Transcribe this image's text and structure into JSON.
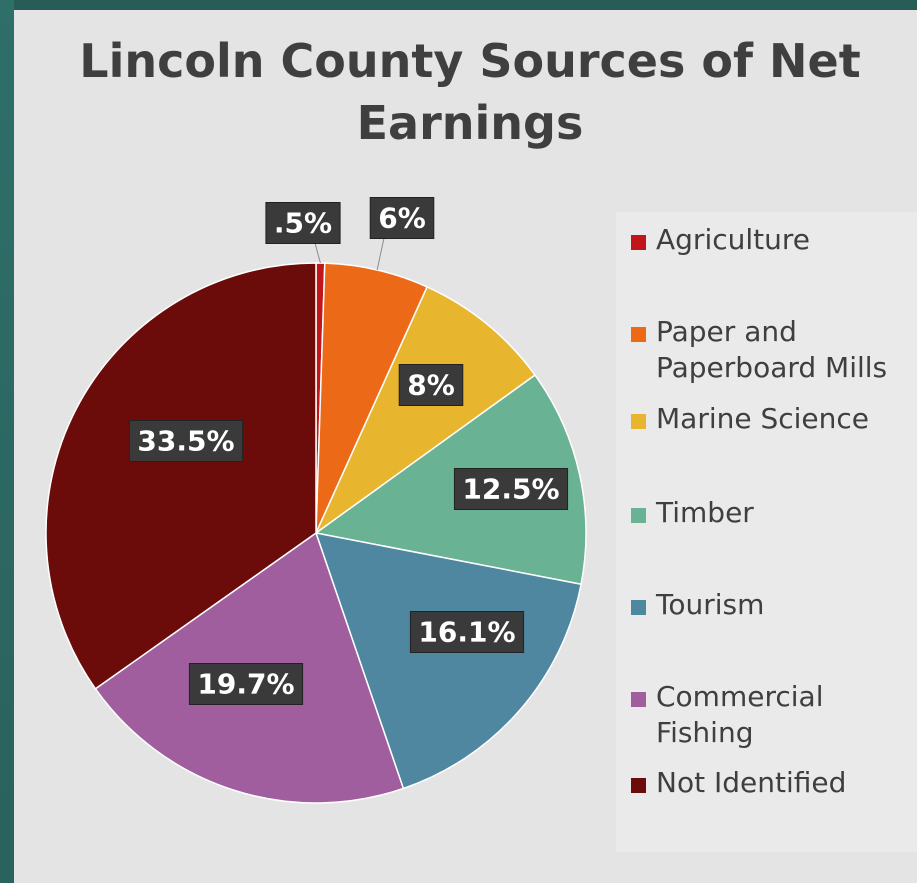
{
  "chart_data": {
    "type": "pie",
    "title": "Lincoln County Sources of Net Earnings",
    "slices": [
      {
        "name": "Agriculture",
        "value": 0.5,
        "label": ".5%",
        "color": "#c0151b"
      },
      {
        "name": "Paper and Paperboard Mills",
        "value": 6,
        "label": "6%",
        "color": "#ec6a17"
      },
      {
        "name": "Marine Science",
        "value": 8,
        "label": "8%",
        "color": "#e8b52e"
      },
      {
        "name": "Timber",
        "value": 12.5,
        "label": "12.5%",
        "color": "#69b394"
      },
      {
        "name": "Tourism",
        "value": 16.1,
        "label": "16.1%",
        "color": "#4e879f"
      },
      {
        "name": "Commercial Fishing",
        "value": 19.7,
        "label": "19.7%",
        "color": "#a05e9f"
      },
      {
        "name": "Not Identified",
        "value": 33.5,
        "label": "33.5%",
        "color": "#6b0c0b"
      }
    ],
    "legend_position": "right"
  }
}
